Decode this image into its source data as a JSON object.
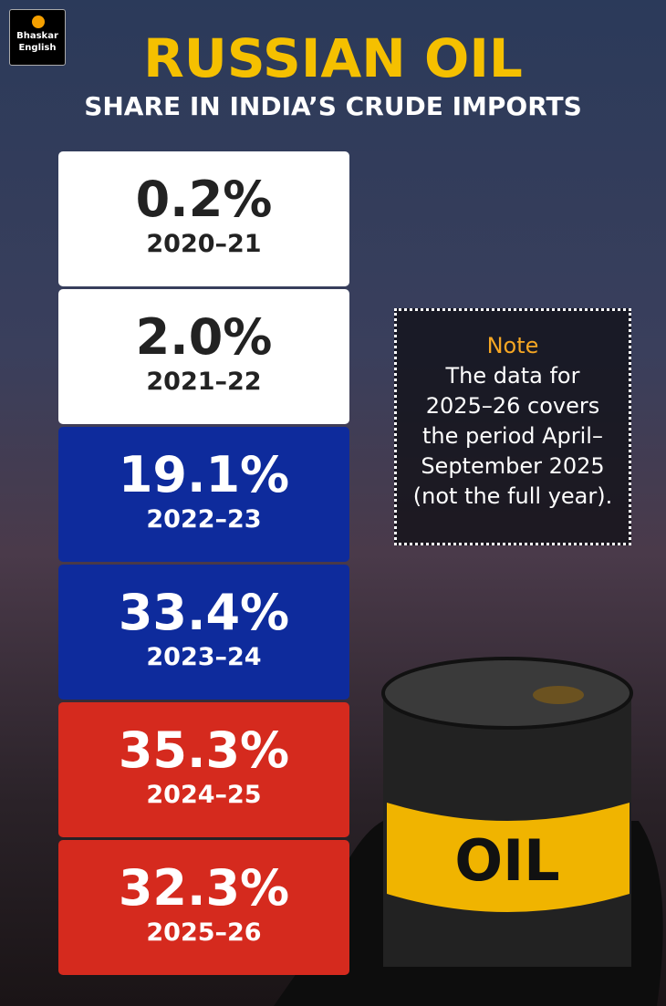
{
  "logo": {
    "lines": [
      "Bhaskar",
      "English"
    ]
  },
  "header": {
    "title": "RUSSIAN OIL",
    "subtitle": "SHARE IN INDIA’S CRUDE IMPORTS"
  },
  "cards": [
    {
      "value": "0.2%",
      "year": "2020–21"
    },
    {
      "value": "2.0%",
      "year": "2021–22"
    },
    {
      "value": "19.1%",
      "year": "2022–23"
    },
    {
      "value": "33.4%",
      "year": "2023–24"
    },
    {
      "value": "35.3%",
      "year": "2024–25"
    },
    {
      "value": "32.3%",
      "year": "2025–26"
    }
  ],
  "note": {
    "heading": "Note",
    "lines": [
      "The data for",
      "2025–26 covers",
      "the period April–",
      "September 2025",
      "(not the full year)."
    ]
  },
  "barrel_label": "OIL"
}
